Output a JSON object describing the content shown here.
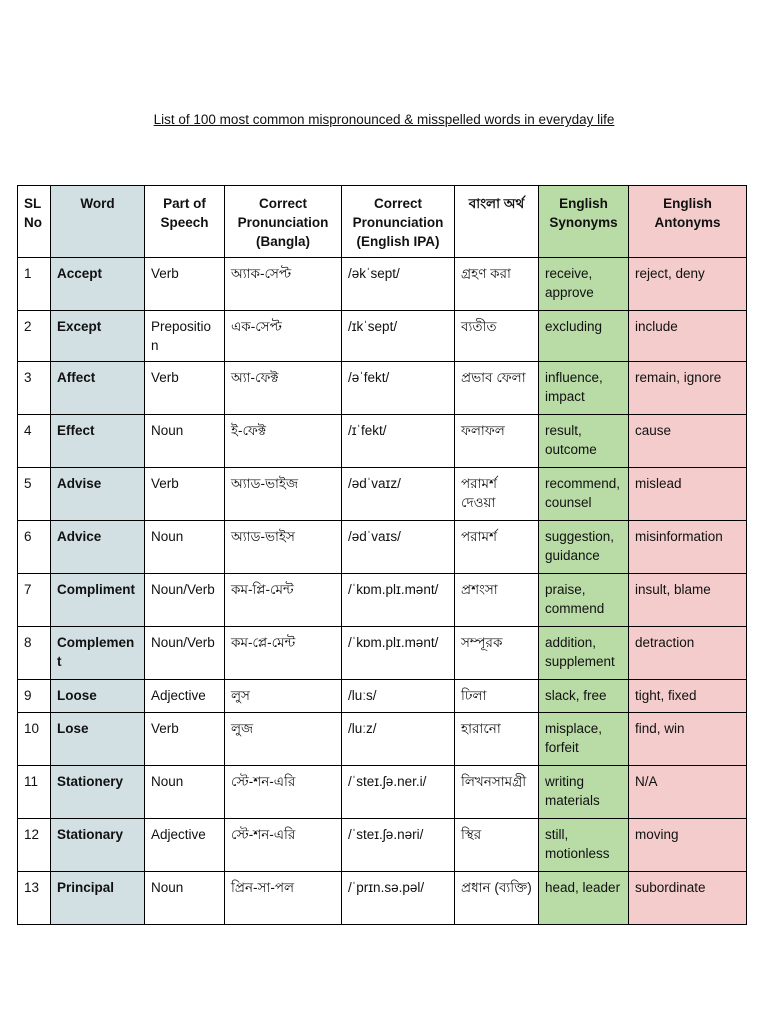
{
  "title": "List of 100 most common mispronounced & misspelled words in everyday life",
  "colors": {
    "word_column": "#d2e0e4",
    "synonyms_column": "#b9dba6",
    "antonyms_column": "#f4cccc"
  },
  "headers": {
    "sl": "SL No",
    "word": "Word",
    "pos": "Part of Speech",
    "pron_bangla": "Correct Pronunciation (Bangla)",
    "pron_ipa": "Correct Pronunciation (English IPA)",
    "bangla_meaning": "বাংলা অর্থ",
    "synonyms": "English Synonyms",
    "antonyms": "English Antonyms"
  },
  "rows": [
    {
      "sl": "1",
      "word": "Accept",
      "pos": "Verb",
      "bangla": "অ্যাক-সেপ্ট",
      "ipa": "/əkˈsept/",
      "meaning": "গ্রহণ করা",
      "syn": "receive, approve",
      "ant": "reject, deny"
    },
    {
      "sl": "2",
      "word": "Except",
      "pos": "Preposition",
      "bangla": "এক-সেপ্ট",
      "ipa": "/ɪkˈsept/",
      "meaning": "ব্যতীত",
      "syn": "excluding",
      "ant": "include"
    },
    {
      "sl": "3",
      "word": "Affect",
      "pos": "Verb",
      "bangla": "অ্যা-ফেক্ট",
      "ipa": "/əˈfekt/",
      "meaning": "প্রভাব ফেলা",
      "syn": "influence, impact",
      "ant": "remain, ignore"
    },
    {
      "sl": "4",
      "word": "Effect",
      "pos": "Noun",
      "bangla": "ই-ফেক্ট",
      "ipa": "/ɪˈfekt/",
      "meaning": "ফলাফল",
      "syn": "result, outcome",
      "ant": "cause"
    },
    {
      "sl": "5",
      "word": "Advise",
      "pos": "Verb",
      "bangla": "অ্যাড-ভাইজ",
      "ipa": "/ədˈvaɪz/",
      "meaning": "পরামর্শ দেওয়া",
      "syn": "recommend, counsel",
      "ant": "mislead"
    },
    {
      "sl": "6",
      "word": "Advice",
      "pos": "Noun",
      "bangla": "অ্যাড-ভাইস",
      "ipa": "/ədˈvaɪs/",
      "meaning": "পরামর্শ",
      "syn": "suggestion, guidance",
      "ant": "misinformation"
    },
    {
      "sl": "7",
      "word": "Compliment",
      "pos": "Noun/Verb",
      "bangla": "কম-প্লি-মেন্ট",
      "ipa": "/ˈkɒm.plɪ.mənt/",
      "meaning": "প্রশংসা",
      "syn": "praise, commend",
      "ant": "insult, blame"
    },
    {
      "sl": "8",
      "word": "Complement",
      "pos": "Noun/Verb",
      "bangla": "কম-প্লে-মেন্ট",
      "ipa": "/ˈkɒm.plɪ.mənt/",
      "meaning": "সম্পূরক",
      "syn": "addition, supplement",
      "ant": "detraction"
    },
    {
      "sl": "9",
      "word": "Loose",
      "pos": "Adjective",
      "bangla": "লুস",
      "ipa": "/luːs/",
      "meaning": "ঢিলা",
      "syn": "slack, free",
      "ant": "tight, fixed"
    },
    {
      "sl": "10",
      "word": "Lose",
      "pos": "Verb",
      "bangla": "লুজ",
      "ipa": "/luːz/",
      "meaning": "হারানো",
      "syn": "misplace, forfeit",
      "ant": "find, win"
    },
    {
      "sl": "11",
      "word": "Stationery",
      "pos": "Noun",
      "bangla": "স্টে-শন-এরি",
      "ipa": "/ˈsteɪ.ʃə.ner.i/",
      "meaning": "লিখনসামগ্রী",
      "syn": "writing materials",
      "ant": "N/A"
    },
    {
      "sl": "12",
      "word": "Stationary",
      "pos": "Adjective",
      "bangla": "স্টে-শন-এরি",
      "ipa": "/ˈsteɪ.ʃə.nəri/",
      "meaning": "স্থির",
      "syn": "still, motionless",
      "ant": "moving"
    },
    {
      "sl": "13",
      "word": "Principal",
      "pos": "Noun",
      "bangla": "প্রিন-সা-পল",
      "ipa": "/ˈprɪn.sə.pəl/",
      "meaning": "প্রধান (ব্যক্তি)",
      "syn": "head, leader",
      "ant": "subordinate"
    }
  ]
}
